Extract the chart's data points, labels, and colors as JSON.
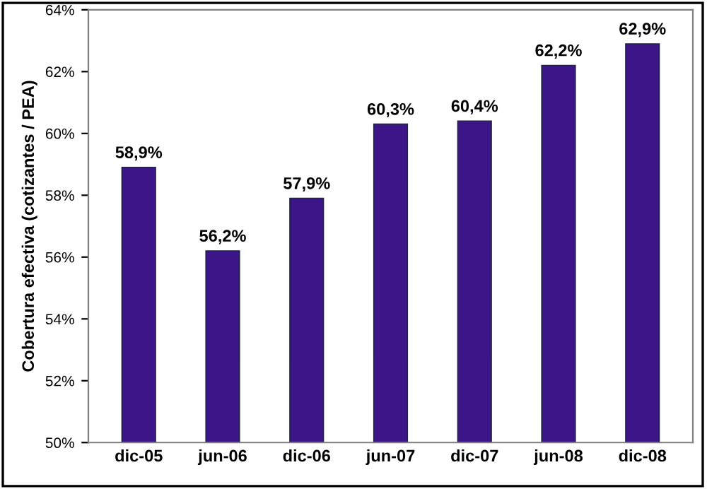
{
  "chart_data": {
    "type": "bar",
    "ylabel": "Cobertura efectiva (cotizantes / PEA)",
    "categories": [
      "dic-05",
      "jun-06",
      "dic-06",
      "jun-07",
      "dic-07",
      "jun-08",
      "dic-08"
    ],
    "series": [
      {
        "color": "#3c1688",
        "values": [
          58.9,
          56.2,
          57.9,
          60.3,
          60.4,
          62.2,
          62.9
        ]
      }
    ],
    "value_labels": [
      "58,9%",
      "56,2%",
      "57,9%",
      "60,3%",
      "60,4%",
      "62,2%",
      "62,9%"
    ],
    "ylim": [
      50,
      64
    ],
    "yticks": [
      {
        "value": 50,
        "label": "50%"
      },
      {
        "value": 52,
        "label": "52%"
      },
      {
        "value": 54,
        "label": "54%"
      },
      {
        "value": 56,
        "label": "56%"
      },
      {
        "value": 58,
        "label": "58%"
      },
      {
        "value": 60,
        "label": "60%"
      },
      {
        "value": 62,
        "label": "62%"
      },
      {
        "value": 64,
        "label": "64%"
      }
    ],
    "grid": false
  }
}
